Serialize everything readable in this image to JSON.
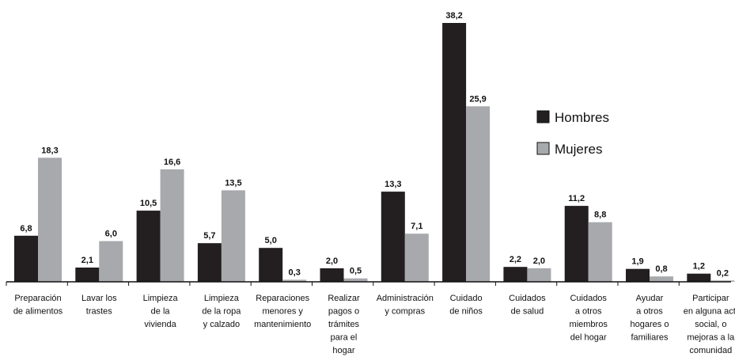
{
  "chart_data": {
    "type": "bar",
    "categories": [
      [
        "Preparación",
        "de alimentos"
      ],
      [
        "Lavar los",
        "trastes"
      ],
      [
        "Limpieza",
        "de la",
        "vivienda"
      ],
      [
        "Limpieza",
        "de la ropa",
        "y calzado"
      ],
      [
        "Reparaciones",
        "menores y",
        "mantenimiento"
      ],
      [
        "Realizar",
        "pagos o",
        "trámites",
        "para el",
        "hogar"
      ],
      [
        "Administración",
        "y compras"
      ],
      [
        "Cuidado",
        "de niños"
      ],
      [
        "Cuidados",
        "de salud"
      ],
      [
        "Cuidados",
        "a otros",
        "miembros",
        "del hogar"
      ],
      [
        "Ayudar",
        "a otros",
        "hogares o",
        "familiares"
      ],
      [
        "Participar",
        "en alguna act.",
        "social, o",
        "mejoras a la",
        "comunidad"
      ]
    ],
    "series": [
      {
        "name": "Hombres",
        "color": "#231f20",
        "values": [
          6.8,
          2.1,
          10.5,
          5.7,
          5.0,
          2.0,
          13.3,
          38.2,
          2.2,
          11.2,
          1.9,
          1.2
        ],
        "labels": [
          "6,8",
          "2,1",
          "10,5",
          "5,7",
          "5,0",
          "2,0",
          "13,3",
          "38,2",
          "2,2",
          "11,2",
          "1,9",
          "1,2"
        ]
      },
      {
        "name": "Mujeres",
        "color": "#a7a9ac",
        "values": [
          18.3,
          6.0,
          16.6,
          13.5,
          0.3,
          0.5,
          7.1,
          25.9,
          2.0,
          8.8,
          0.8,
          0.2
        ],
        "labels": [
          "18,3",
          "6,0",
          "16,6",
          "13,5",
          "0,3",
          "0,5",
          "7,1",
          "25,9",
          "2,0",
          "8,8",
          "0,8",
          "0,2"
        ]
      }
    ],
    "ylim": [
      0,
      38.2
    ],
    "grid": false,
    "legend": "right"
  }
}
